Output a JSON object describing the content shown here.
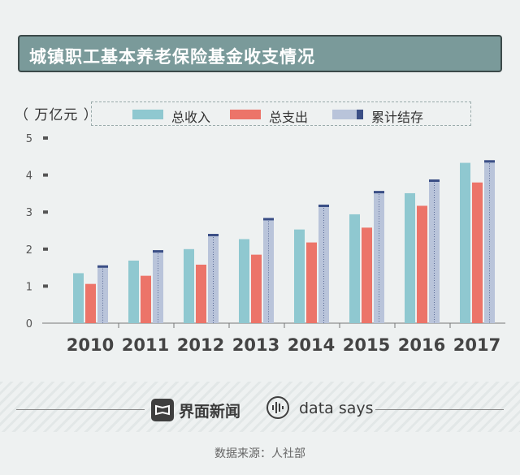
{
  "title": "城镇职工基本养老保险基金收支情况",
  "unit": "（ 万亿元 ）",
  "colors": {
    "income": "#8fc8d0",
    "expense": "#ec7469",
    "balance": "#b9c4da",
    "balance_cap": "#3b4f86",
    "title_bg": "#7a9a9a"
  },
  "chart_data": {
    "type": "bar",
    "title": "城镇职工基本养老保险基金收支情况",
    "ylabel": "（ 万亿元 ）",
    "xlabel": "",
    "ylim": [
      0,
      5
    ],
    "yticks": [
      0,
      1,
      2,
      3,
      4,
      5
    ],
    "categories": [
      "2010",
      "2011",
      "2012",
      "2013",
      "2014",
      "2015",
      "2016",
      "2017"
    ],
    "series": [
      {
        "name": "总收入",
        "values": [
          1.35,
          1.69,
          2.0,
          2.27,
          2.53,
          2.94,
          3.51,
          4.33
        ]
      },
      {
        "name": "总支出",
        "values": [
          1.06,
          1.28,
          1.58,
          1.85,
          2.18,
          2.58,
          3.17,
          3.8
        ]
      },
      {
        "name": "累计结存",
        "values": [
          1.54,
          1.95,
          2.39,
          2.82,
          3.18,
          3.55,
          3.86,
          4.38
        ]
      }
    ],
    "legend_position": "top"
  },
  "footer": {
    "brand1": "界面新闻",
    "brand2": "data says",
    "source": "数据来源：人社部"
  }
}
